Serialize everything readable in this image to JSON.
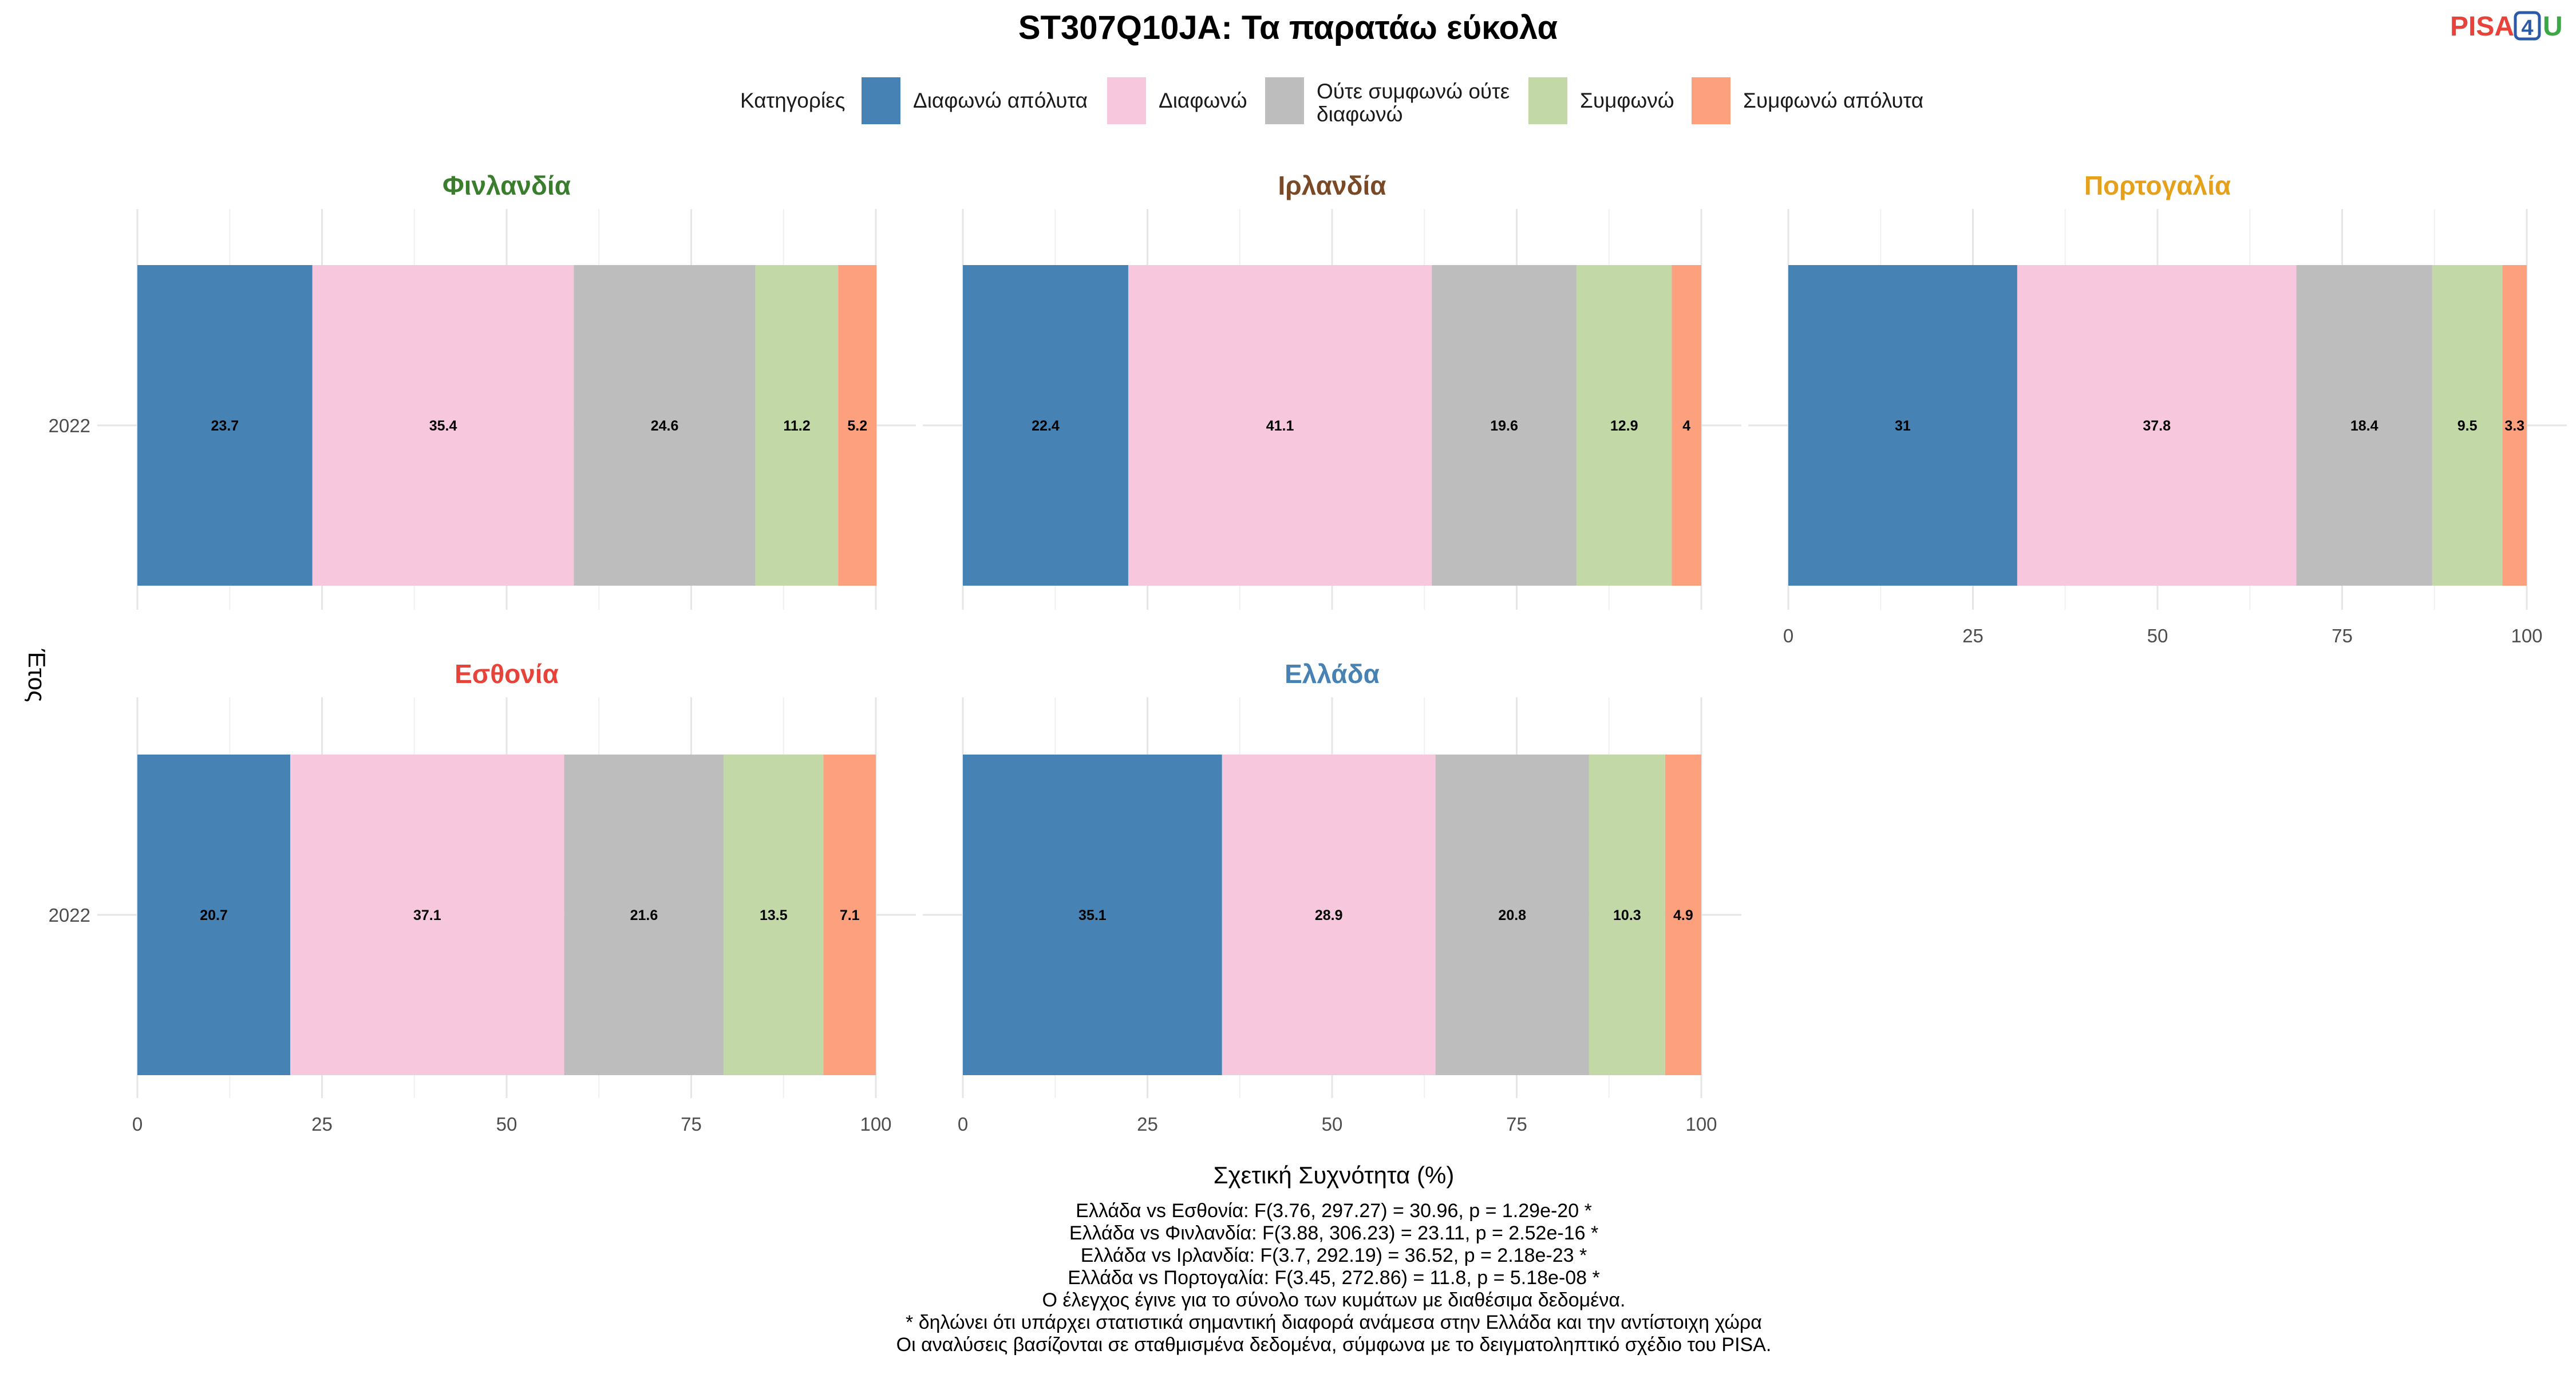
{
  "title": "ST307Q10JA: Τα παρατάω εύκολα",
  "brand": {
    "pisa": "PISA",
    "four": "4",
    "u": "U",
    "colors": {
      "pisa": "#e8433a",
      "four": "#2b5aa8",
      "u": "#3aa845"
    }
  },
  "legend": {
    "title": "Κατηγορίες",
    "items": [
      {
        "label": "Διαφωνώ απόλυτα",
        "color": "#4682B4"
      },
      {
        "label": "Διαφωνώ",
        "color": "#F7C8DD"
      },
      {
        "label": "Ούτε συμφωνώ ούτε\nδιαφωνώ",
        "color": "#BDBDBD"
      },
      {
        "label": "Συμφωνώ",
        "color": "#C2D8A6"
      },
      {
        "label": "Συμφωνώ απόλυτα",
        "color": "#FDA07E"
      }
    ]
  },
  "chart_data": {
    "type": "bar",
    "orientation": "horizontal-stacked",
    "categories": [
      "Διαφωνώ απόλυτα",
      "Διαφωνώ",
      "Ούτε συμφωνώ ούτε διαφωνώ",
      "Συμφωνώ",
      "Συμφωνώ απόλυτα"
    ],
    "xlabel": "Σχετική Συχνότητα (%)",
    "ylabel": "Έτος",
    "xlim": [
      0,
      100
    ],
    "xticks": [
      0,
      25,
      50,
      75,
      100
    ],
    "grid": true,
    "legend_position": "top",
    "panels": [
      {
        "name": "Φινλανδία",
        "title_color": "#3A7D2C",
        "year": "2022",
        "values": [
          23.7,
          35.4,
          24.6,
          11.2,
          5.2
        ]
      },
      {
        "name": "Ιρλανδία",
        "title_color": "#7A4A26",
        "year": "2022",
        "values": [
          22.4,
          41.1,
          19.6,
          12.9,
          4
        ]
      },
      {
        "name": "Πορτογαλία",
        "title_color": "#E5A11C",
        "year": "2022",
        "values": [
          31,
          37.8,
          18.4,
          9.5,
          3.3
        ]
      },
      {
        "name": "Εσθονία",
        "title_color": "#E8433A",
        "year": "2022",
        "values": [
          20.7,
          37.1,
          21.6,
          13.5,
          7.1
        ]
      },
      {
        "name": "Ελλάδα",
        "title_color": "#4682B4",
        "year": "2022",
        "values": [
          35.1,
          28.9,
          20.8,
          10.3,
          4.9
        ]
      }
    ]
  },
  "footnotes": [
    "Ελλάδα vs Εσθονία: F(3.76, 297.27) = 30.96, p = 1.29e-20 *",
    "Ελλάδα vs Φινλανδία: F(3.88, 306.23) = 23.11, p = 2.52e-16 *",
    "Ελλάδα vs Ιρλανδία: F(3.7, 292.19) = 36.52, p = 2.18e-23 *",
    "Ελλάδα vs Πορτογαλία: F(3.45, 272.86) = 11.8, p = 5.18e-08 *",
    "Ο έλεγχος έγινε για το σύνολο των κυμάτων με διαθέσιμα δεδομένα.",
    "* δηλώνει ότι υπάρχει στατιστικά σημαντική διαφορά ανάμεσα στην Ελλάδα και την αντίστοιχη χώρα",
    "Οι αναλύσεις βασίζονται σε σταθμισμένα δεδομένα, σύμφωνα με το δειγματοληπτικό σχέδιο του PISA."
  ]
}
